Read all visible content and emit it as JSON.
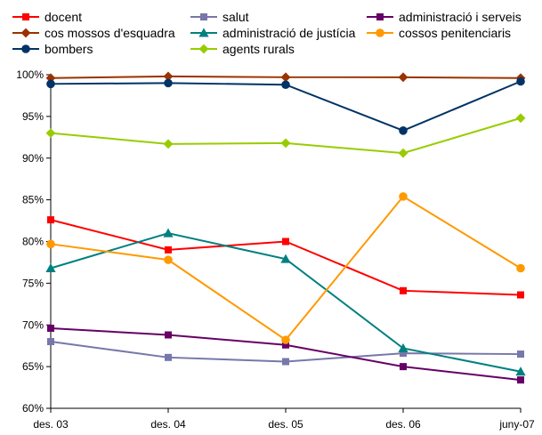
{
  "chart_data": {
    "type": "line",
    "title": "",
    "xlabel": "",
    "ylabel": "",
    "categories": [
      "des. 03",
      "des. 04",
      "des. 05",
      "des. 06",
      "juny-07"
    ],
    "y_ticks": [
      "60%",
      "65%",
      "70%",
      "75%",
      "80%",
      "85%",
      "90%",
      "95%",
      "100%"
    ],
    "ylim": [
      60,
      100
    ],
    "grid": false,
    "legend_placement": "top",
    "series": [
      {
        "name": "docent",
        "color": "#ff0000",
        "marker": "square",
        "values": [
          82.6,
          79.0,
          80.0,
          74.1,
          73.6
        ]
      },
      {
        "name": "salut",
        "color": "#7777aa",
        "marker": "square",
        "values": [
          68.0,
          66.1,
          65.6,
          66.6,
          66.5
        ]
      },
      {
        "name": "administració i serveis",
        "color": "#660066",
        "marker": "square",
        "values": [
          69.6,
          68.8,
          67.6,
          65.0,
          63.4
        ]
      },
      {
        "name": "cos mossos d'esquadra",
        "color": "#993300",
        "marker": "diamond",
        "values": [
          99.6,
          99.8,
          99.7,
          99.7,
          99.6
        ]
      },
      {
        "name": "administració de justícia",
        "color": "#008080",
        "marker": "triangle",
        "values": [
          76.8,
          81.0,
          77.9,
          67.2,
          64.4
        ]
      },
      {
        "name": "cossos penitenciaris",
        "color": "#ff9900",
        "marker": "circle",
        "values": [
          79.7,
          77.8,
          68.2,
          85.4,
          76.8
        ]
      },
      {
        "name": "bombers",
        "color": "#003366",
        "marker": "circle",
        "values": [
          98.9,
          99.0,
          98.8,
          93.3,
          99.2
        ]
      },
      {
        "name": "agents rurals",
        "color": "#99cc00",
        "marker": "diamond",
        "values": [
          93.0,
          91.7,
          91.8,
          90.6,
          94.8
        ]
      }
    ]
  }
}
